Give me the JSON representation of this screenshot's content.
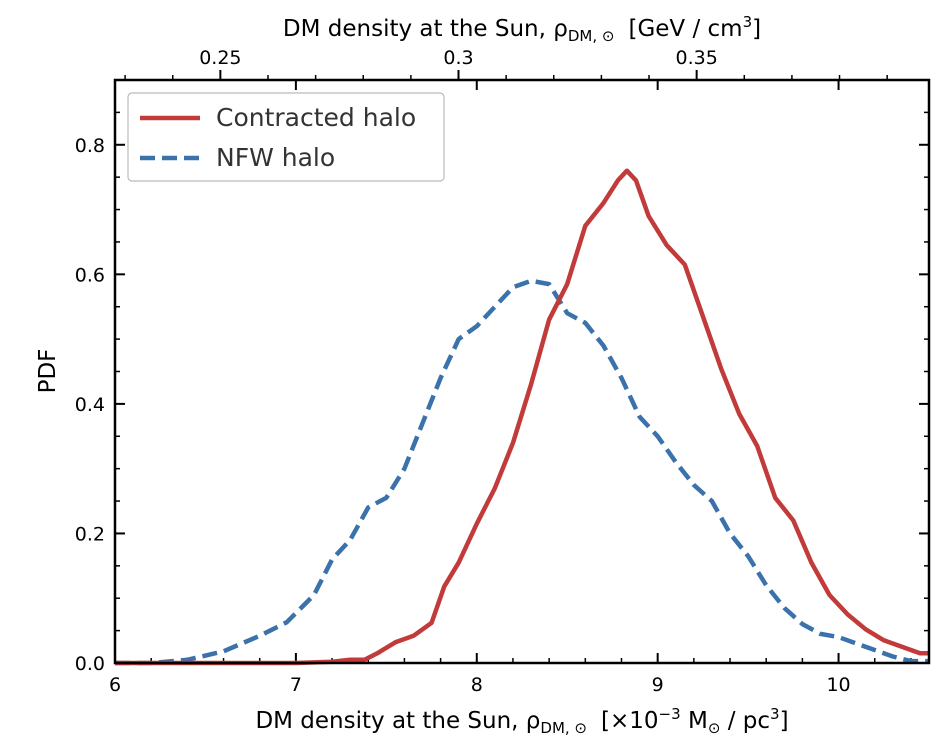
{
  "chart_data": {
    "type": "line",
    "xlabel": "DM density at the Sun, ρ",
    "xlabel_sub": "DM, ⊙",
    "xlabel_units_pre": "[×10",
    "xlabel_units_exp": "−3",
    "xlabel_units_mid": " M",
    "xlabel_units_msub": "⊙",
    "xlabel_units_post": " / pc",
    "xlabel_units_post_exp": "3",
    "xlabel_units_end": "]",
    "top_xlabel": "DM density at the Sun, ρ",
    "top_xlabel_sub": "DM, ⊙",
    "top_xlabel_units": "[GeV / cm",
    "top_xlabel_units_exp": "3",
    "top_xlabel_units_end": "]",
    "ylabel": "PDF",
    "xlim": [
      6,
      10.5
    ],
    "ylim": [
      0,
      0.9
    ],
    "xticks": [
      6,
      7,
      8,
      9,
      10
    ],
    "xtick_labels": [
      "6",
      "7",
      "8",
      "9",
      "10"
    ],
    "yticks": [
      0.0,
      0.2,
      0.4,
      0.6,
      0.8
    ],
    "ytick_labels": [
      "0.0",
      "0.2",
      "0.4",
      "0.6",
      "0.8"
    ],
    "top_xticks": [
      0.25,
      0.3,
      0.35
    ],
    "top_xtick_labels": [
      "0.25",
      "0.3",
      "0.35"
    ],
    "top_axis_conversion_factor": 26.33,
    "legend_position": "upper-left",
    "grid": false,
    "series": [
      {
        "name": "Contracted halo",
        "color": "#c23b3b",
        "linestyle": "solid",
        "x": [
          6.0,
          6.5,
          7.0,
          7.2,
          7.3,
          7.38,
          7.45,
          7.55,
          7.65,
          7.75,
          7.82,
          7.9,
          8.0,
          8.1,
          8.2,
          8.3,
          8.4,
          8.5,
          8.6,
          8.7,
          8.78,
          8.83,
          8.88,
          8.95,
          9.05,
          9.15,
          9.25,
          9.35,
          9.45,
          9.55,
          9.65,
          9.75,
          9.85,
          9.95,
          10.05,
          10.15,
          10.25,
          10.35,
          10.45,
          10.5
        ],
        "y": [
          0.0,
          0.0,
          0.0,
          0.002,
          0.005,
          0.005,
          0.015,
          0.032,
          0.042,
          0.062,
          0.118,
          0.155,
          0.215,
          0.27,
          0.34,
          0.43,
          0.53,
          0.585,
          0.675,
          0.71,
          0.745,
          0.76,
          0.745,
          0.69,
          0.645,
          0.615,
          0.535,
          0.455,
          0.385,
          0.335,
          0.255,
          0.22,
          0.155,
          0.105,
          0.075,
          0.052,
          0.035,
          0.025,
          0.015,
          0.015
        ]
      },
      {
        "name": "NFW halo",
        "color": "#3b72ab",
        "linestyle": "dashed",
        "x": [
          6.0,
          6.2,
          6.4,
          6.6,
          6.8,
          6.95,
          7.1,
          7.2,
          7.3,
          7.4,
          7.5,
          7.6,
          7.7,
          7.8,
          7.9,
          8.0,
          8.1,
          8.2,
          8.3,
          8.4,
          8.5,
          8.6,
          8.7,
          8.8,
          8.9,
          9.0,
          9.1,
          9.2,
          9.3,
          9.4,
          9.5,
          9.6,
          9.7,
          9.8,
          9.9,
          10.0,
          10.1,
          10.2,
          10.3,
          10.4,
          10.5
        ],
        "y": [
          0.0,
          0.0,
          0.005,
          0.018,
          0.042,
          0.063,
          0.105,
          0.16,
          0.19,
          0.24,
          0.255,
          0.3,
          0.37,
          0.44,
          0.5,
          0.52,
          0.55,
          0.58,
          0.59,
          0.585,
          0.54,
          0.525,
          0.49,
          0.44,
          0.38,
          0.35,
          0.31,
          0.275,
          0.25,
          0.2,
          0.165,
          0.12,
          0.085,
          0.06,
          0.045,
          0.04,
          0.03,
          0.02,
          0.01,
          0.003,
          0.003
        ]
      }
    ]
  }
}
